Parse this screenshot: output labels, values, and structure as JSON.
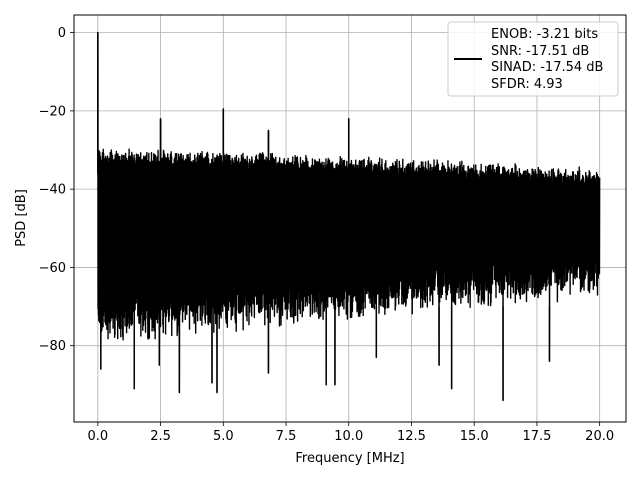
{
  "chart_data": {
    "type": "line",
    "title": "",
    "xlabel": "Frequency [MHz]",
    "ylabel": "PSD [dB]",
    "xlim": [
      -0.95,
      21.05
    ],
    "ylim": [
      -99.5,
      4.5
    ],
    "x_ticks": [
      0.0,
      2.5,
      5.0,
      7.5,
      10.0,
      12.5,
      15.0,
      17.5,
      20.0
    ],
    "x_tick_labels": [
      "0.0",
      "2.5",
      "5.0",
      "7.5",
      "10.0",
      "12.5",
      "15.0",
      "17.5",
      "20.0"
    ],
    "y_ticks": [
      0,
      -20,
      -40,
      -60,
      -80
    ],
    "y_tick_labels": [
      "0",
      "−20",
      "−40",
      "−60",
      "−80"
    ],
    "grid": true,
    "legend_position": "top-right",
    "line_color": "#000000",
    "series": [
      {
        "name": "ENOB: -3.21 bits\nSNR: -17.51 dB\nSINAD: -17.54 dB\nSFDR: 4.93",
        "x_range": [
          0,
          20
        ],
        "noise_top_db": [
          -31,
          -36
        ],
        "noise_bottom_db": [
          -76,
          -64
        ],
        "spikes": [
          {
            "x": 0.0,
            "y": 0.0
          },
          {
            "x": 2.5,
            "y": -22
          },
          {
            "x": 5.0,
            "y": -19.5
          },
          {
            "x": 6.8,
            "y": -25
          },
          {
            "x": 10.0,
            "y": -22
          }
        ],
        "dips": [
          {
            "x": 0.12,
            "y": -86
          },
          {
            "x": 1.45,
            "y": -91
          },
          {
            "x": 3.25,
            "y": -92
          },
          {
            "x": 4.55,
            "y": -89.5
          },
          {
            "x": 4.75,
            "y": -92
          },
          {
            "x": 6.8,
            "y": -87
          },
          {
            "x": 9.1,
            "y": -90
          },
          {
            "x": 9.45,
            "y": -90
          },
          {
            "x": 14.1,
            "y": -91
          },
          {
            "x": 16.15,
            "y": -94
          },
          {
            "x": 2.45,
            "y": -85
          },
          {
            "x": 11.1,
            "y": -83
          },
          {
            "x": 13.6,
            "y": -85
          },
          {
            "x": 18.0,
            "y": -84
          }
        ]
      }
    ]
  },
  "legend": {
    "lines": [
      "ENOB: -3.21 bits",
      "SNR: -17.51 dB",
      "SINAD: -17.54 dB",
      "SFDR: 4.93"
    ]
  }
}
